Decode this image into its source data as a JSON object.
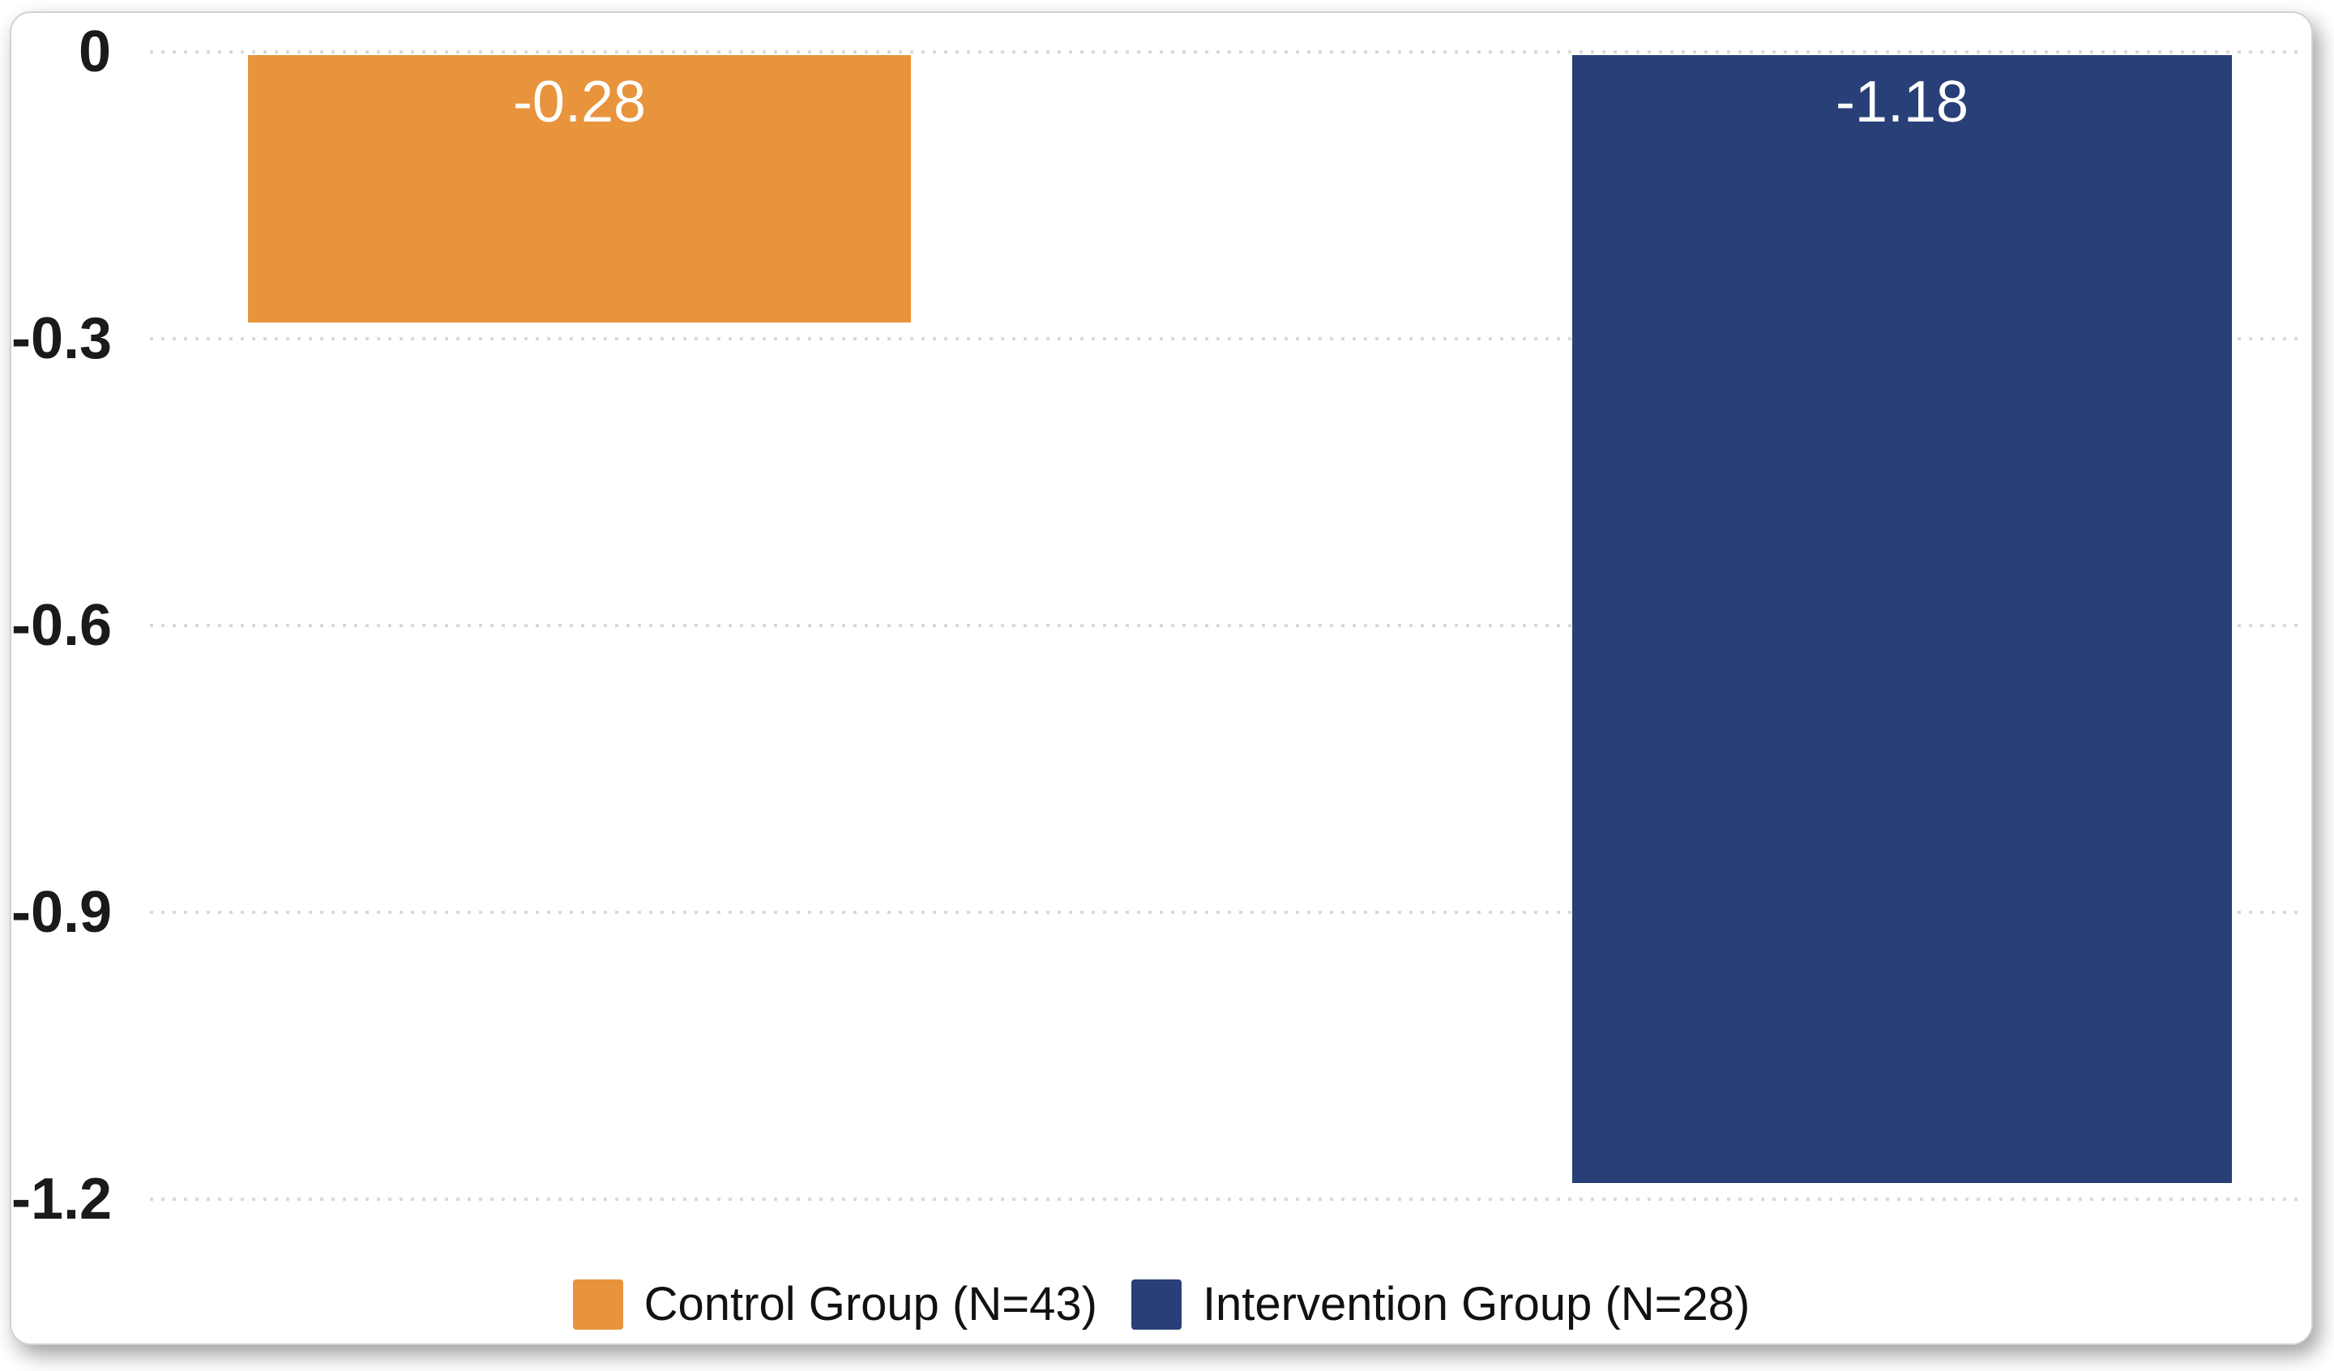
{
  "chart_data": {
    "type": "bar",
    "categories": [
      "Control Group (N=43)",
      "Intervention Group (N=28)"
    ],
    "values": [
      -0.28,
      -1.18
    ],
    "value_labels": [
      "-0.28",
      "-1.18"
    ],
    "series_colors": [
      "#E8943C",
      "#283F77"
    ],
    "title": "",
    "xlabel": "",
    "ylabel": "",
    "ylim": [
      -1.2,
      0
    ],
    "yticks": [
      0,
      -0.3,
      -0.6,
      -0.9,
      -1.2
    ],
    "ytick_labels": [
      "0",
      "-0.3",
      "-0.6",
      "-0.9",
      "-1.2"
    ],
    "grid": "horizontal-dotted",
    "legend_position": "bottom"
  },
  "legend": {
    "items": [
      {
        "label": "Control Group (N=43)",
        "color": "#E8943C"
      },
      {
        "label": "Intervention Group (N=28)",
        "color": "#283F77"
      }
    ]
  },
  "colors": {
    "control_bar": "#E8943C",
    "intervention_bar": "#283F77",
    "gridline": "#D9D9D9",
    "axis_text": "#1A1A1A",
    "bar_label_text": "#FFFFFF",
    "background": "#FFFFFF",
    "card_border": "#D2D2D2"
  }
}
